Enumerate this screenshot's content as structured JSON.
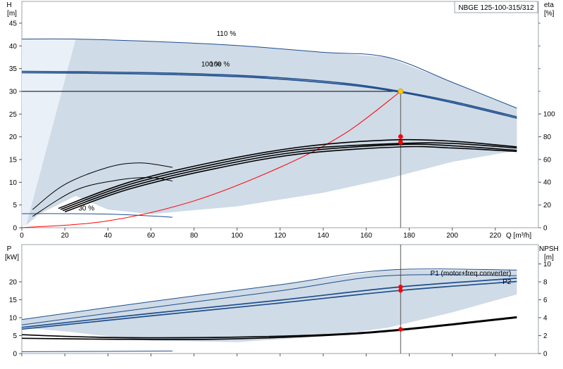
{
  "chart_data": [
    {
      "type": "line",
      "panel": "head",
      "title": "NBGE 125-100-315/312",
      "x_axis": {
        "label": "Q [m³/h]",
        "ticks": [
          0,
          20,
          40,
          60,
          80,
          100,
          120,
          140,
          160,
          180,
          200,
          220
        ],
        "range": [
          0,
          240
        ]
      },
      "y_axis_left": {
        "label_top": "H",
        "label_unit": "[m]",
        "ticks": [
          0,
          5,
          10,
          15,
          20,
          25,
          30,
          35,
          40,
          45
        ],
        "range": [
          0,
          45
        ]
      },
      "y_axis_right": {
        "label_top": "eta",
        "label_unit": "[%]",
        "ticks": [
          0,
          20,
          40,
          60,
          80,
          100
        ],
        "range": [
          0,
          100
        ]
      },
      "curve_labels": [
        {
          "text": "110 %",
          "x": 95,
          "y": 42.2
        },
        {
          "text": "100 %",
          "x": 88,
          "y": 35.5
        },
        {
          "text": "100 %",
          "x": 92,
          "y": 35.5
        },
        {
          "text": "30 %",
          "x": 30,
          "y": 3.8
        }
      ],
      "duty_point": {
        "q": 176,
        "h": 30
      },
      "series": [
        {
          "role": "head-110",
          "axis": "left",
          "color": "#1f4e8c",
          "points": [
            [
              0,
              41.5
            ],
            [
              25,
              41.5
            ],
            [
              60,
              41.0
            ],
            [
              100,
              40.1
            ],
            [
              140,
              38.6
            ],
            [
              170,
              37.5
            ],
            [
              200,
              32
            ],
            [
              230,
              26.3
            ]
          ]
        },
        {
          "role": "head-100a",
          "axis": "left",
          "color": "#1f4e8c",
          "points": [
            [
              0,
              34.4
            ],
            [
              30,
              34.3
            ],
            [
              70,
              34.0
            ],
            [
              110,
              33.3
            ],
            [
              150,
              31.8
            ],
            [
              176,
              30.0
            ],
            [
              200,
              27.8
            ],
            [
              230,
              24.4
            ]
          ]
        },
        {
          "role": "head-100b",
          "axis": "left",
          "color": "#1f4e8c",
          "points": [
            [
              0,
              34.1
            ],
            [
              30,
              34.0
            ],
            [
              70,
              33.7
            ],
            [
              110,
              33.0
            ],
            [
              150,
              31.5
            ],
            [
              176,
              29.8
            ],
            [
              200,
              27.5
            ],
            [
              230,
              24.1
            ]
          ]
        },
        {
          "role": "head-30",
          "axis": "left",
          "color": "#1f4e8c",
          "points": [
            [
              0,
              3.1
            ],
            [
              20,
              3.1
            ],
            [
              40,
              3.0
            ],
            [
              60,
              2.6
            ],
            [
              70,
              2.3
            ]
          ]
        },
        {
          "role": "system-curve",
          "axis": "left",
          "color": "#ff0000",
          "points": [
            [
              0,
              0
            ],
            [
              40,
              1.5
            ],
            [
              80,
              5.9
            ],
            [
              120,
              13.3
            ],
            [
              150,
              20.7
            ],
            [
              176,
              30
            ]
          ]
        },
        {
          "role": "eta-thin-1",
          "axis": "right",
          "color": "#000000",
          "points": [
            [
              5,
              16
            ],
            [
              20,
              38
            ],
            [
              40,
              53
            ],
            [
              55,
              57
            ],
            [
              70,
              53
            ]
          ]
        },
        {
          "role": "eta-thin-2",
          "axis": "right",
          "color": "#000000",
          "points": [
            [
              5,
              10
            ],
            [
              25,
              33
            ],
            [
              45,
              42
            ],
            [
              60,
              44
            ],
            [
              70,
              41
            ]
          ]
        },
        {
          "role": "eta-1",
          "axis": "right",
          "color": "#000000",
          "points": [
            [
              17,
              17
            ],
            [
              50,
              40
            ],
            [
              90,
              58
            ],
            [
              130,
              71
            ],
            [
              170,
              77
            ],
            [
              200,
              76
            ],
            [
              230,
              71
            ]
          ]
        },
        {
          "role": "eta-2",
          "axis": "right",
          "color": "#000000",
          "points": [
            [
              18,
              16
            ],
            [
              50,
              38
            ],
            [
              90,
              56
            ],
            [
              130,
              69
            ],
            [
              176,
              74
            ],
            [
              200,
              74
            ],
            [
              230,
              70
            ]
          ]
        },
        {
          "role": "eta-3",
          "axis": "right",
          "color": "#000000",
          "points": [
            [
              19,
              15
            ],
            [
              50,
              36
            ],
            [
              90,
              54
            ],
            [
              130,
              67
            ],
            [
              176,
              73
            ],
            [
              200,
              72
            ],
            [
              230,
              68
            ]
          ]
        },
        {
          "role": "eta-4",
          "axis": "right",
          "color": "#000000",
          "points": [
            [
              20,
              14
            ],
            [
              50,
              34
            ],
            [
              90,
              52
            ],
            [
              130,
              65
            ],
            [
              176,
              71
            ],
            [
              200,
              70
            ],
            [
              230,
              67
            ]
          ]
        }
      ],
      "points": [
        {
          "axis": "left",
          "q": 176,
          "h": 30,
          "color": "#ffcc00"
        },
        {
          "axis": "right",
          "q": 176,
          "eta": 80,
          "color": "#ff0000"
        },
        {
          "axis": "right",
          "q": 176,
          "eta": 75,
          "color": "#ff0000"
        }
      ]
    },
    {
      "type": "line",
      "panel": "power",
      "x_axis": {
        "range": [
          0,
          240
        ]
      },
      "y_axis_left": {
        "label_top": "P",
        "label_unit": "[kW]",
        "ticks": [
          0,
          5,
          10,
          15,
          20
        ],
        "range": [
          0,
          24.5
        ]
      },
      "y_axis_right": {
        "label_top": "NPSH",
        "label_unit": "[m]",
        "ticks": [
          0,
          2,
          4,
          6,
          8,
          10
        ],
        "range": [
          0,
          12
        ]
      },
      "annotations": [
        {
          "text": "P1 (motor+freq.converter)",
          "q": 228,
          "p": 22.5
        },
        {
          "text": "P2",
          "q": 228,
          "p": 20.1
        }
      ],
      "series": [
        {
          "role": "p1-110",
          "axis": "left",
          "color": "#1f4e8c",
          "points": [
            [
              0,
              9.5
            ],
            [
              60,
              14.5
            ],
            [
              120,
              19.2
            ],
            [
              170,
              23.3
            ],
            [
              230,
              23.3
            ]
          ]
        },
        {
          "role": "p2-110",
          "axis": "left",
          "color": "#1f4e8c",
          "points": [
            [
              0,
              8
            ],
            [
              60,
              12.8
            ],
            [
              120,
              17.5
            ],
            [
              170,
              21.7
            ],
            [
              230,
              21.7
            ]
          ]
        },
        {
          "role": "p1-100",
          "axis": "left",
          "color": "#1f4e8c",
          "points": [
            [
              0,
              7.3
            ],
            [
              60,
              11.2
            ],
            [
              120,
              14.9
            ],
            [
              176,
              18.6
            ],
            [
              230,
              21
            ]
          ]
        },
        {
          "role": "p2-100",
          "axis": "left",
          "color": "#1f4e8c",
          "points": [
            [
              0,
              6.8
            ],
            [
              60,
              10.5
            ],
            [
              120,
              14.1
            ],
            [
              176,
              17.6
            ],
            [
              230,
              20.1
            ]
          ]
        },
        {
          "role": "p-30",
          "axis": "left",
          "color": "#1f4e8c",
          "points": [
            [
              0,
              0.5
            ],
            [
              70,
              0.7
            ]
          ]
        },
        {
          "role": "npsh-1",
          "axis": "right",
          "color": "#000000",
          "points": [
            [
              0,
              2.1
            ],
            [
              40,
              1.8
            ],
            [
              90,
              1.8
            ],
            [
              140,
              2.1
            ],
            [
              176,
              2.7
            ],
            [
              230,
              4.1
            ]
          ]
        },
        {
          "role": "npsh-2",
          "axis": "right",
          "color": "#000000",
          "points": [
            [
              0,
              1.7
            ],
            [
              40,
              1.6
            ],
            [
              90,
              1.6
            ],
            [
              140,
              2.0
            ],
            [
              176,
              2.6
            ],
            [
              230,
              4.0
            ]
          ]
        }
      ],
      "points": [
        {
          "axis": "left",
          "q": 176,
          "p": 18.6,
          "color": "#ff0000"
        },
        {
          "axis": "left",
          "q": 176,
          "p": 17.6,
          "color": "#ff0000"
        },
        {
          "axis": "right",
          "q": 176,
          "npsh": 2.7,
          "color": "#ff0000"
        }
      ]
    }
  ]
}
